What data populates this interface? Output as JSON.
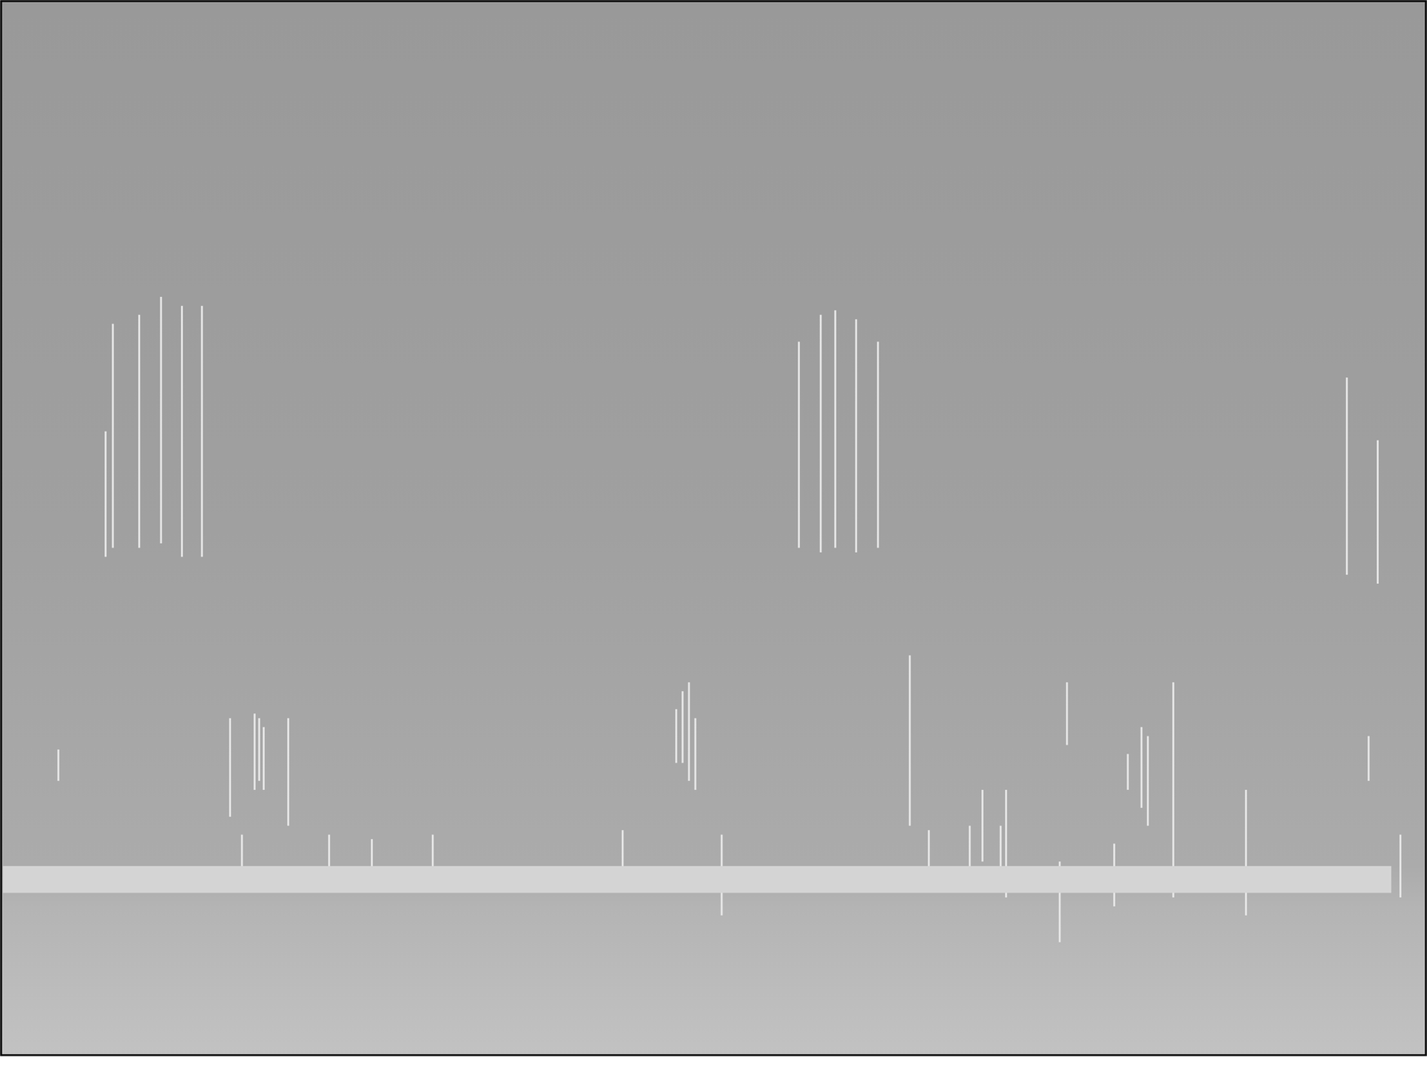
{
  "chart_data": {
    "type": "spectrogram",
    "tick_labels": false,
    "grid": false,
    "xlim": [
      0,
      1568
    ],
    "ylim": [
      0,
      1176
    ],
    "color": "#e8e8e8",
    "band": {
      "x0": 2,
      "x1": 1530,
      "y0": 181,
      "y1": 211,
      "color": "#d4d4d4"
    },
    "streaks": [
      [
        115,
        556,
        696
      ],
      [
        123,
        566,
        816
      ],
      [
        152,
        566,
        826
      ],
      [
        176,
        571,
        846
      ],
      [
        199,
        556,
        836
      ],
      [
        221,
        556,
        836
      ],
      [
        878,
        566,
        796
      ],
      [
        902,
        561,
        826
      ],
      [
        918,
        566,
        831
      ],
      [
        941,
        561,
        821
      ],
      [
        965,
        566,
        796
      ],
      [
        1481,
        536,
        756
      ],
      [
        1515,
        526,
        686
      ],
      [
        63,
        306,
        341
      ],
      [
        252,
        266,
        376
      ],
      [
        265,
        191,
        246
      ],
      [
        279,
        296,
        381
      ],
      [
        284,
        306,
        376
      ],
      [
        289,
        296,
        366
      ],
      [
        316,
        256,
        376
      ],
      [
        361,
        201,
        246
      ],
      [
        408,
        201,
        241
      ],
      [
        475,
        201,
        246
      ],
      [
        684,
        206,
        251
      ],
      [
        743,
        326,
        386
      ],
      [
        750,
        326,
        406
      ],
      [
        757,
        306,
        416
      ],
      [
        764,
        296,
        376
      ],
      [
        793,
        156,
        246
      ],
      [
        1000,
        256,
        446
      ],
      [
        1021,
        201,
        251
      ],
      [
        1066,
        196,
        256
      ],
      [
        1080,
        216,
        296
      ],
      [
        1100,
        191,
        256
      ],
      [
        1106,
        176,
        296
      ],
      [
        1165,
        126,
        216
      ],
      [
        1173,
        346,
        416
      ],
      [
        1225,
        166,
        236
      ],
      [
        1240,
        296,
        336
      ],
      [
        1255,
        276,
        366
      ],
      [
        1262,
        256,
        356
      ],
      [
        1290,
        176,
        416
      ],
      [
        1370,
        156,
        296
      ],
      [
        1505,
        306,
        356
      ],
      [
        1540,
        176,
        246
      ]
    ]
  }
}
